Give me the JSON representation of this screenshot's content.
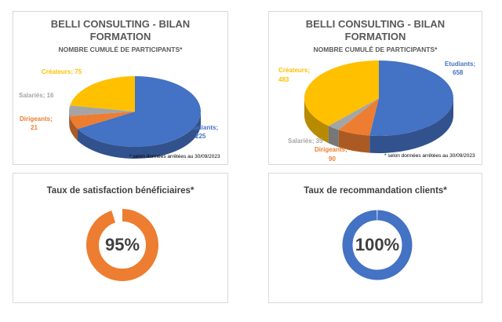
{
  "chart_data": [
    {
      "type": "pie",
      "title": "BELLI CONSULTING - BILAN FORMATION",
      "subtitle": "NOMBRE CUMULÉ DE PARTICIPANTS*",
      "footnote": "* selon données arrêtées au 30/09/2023",
      "slices": [
        {
          "label": "Etudiants",
          "value": 225,
          "color": "#4472c4"
        },
        {
          "label": "Dirigeants",
          "value": 21,
          "color": "#ed7d31"
        },
        {
          "label": "Salariés",
          "value": 16,
          "color": "#a5a5a5"
        },
        {
          "label": "Créateurs",
          "value": 75,
          "color": "#ffc000"
        }
      ],
      "label_texts": [
        "Etudiants;",
        "225",
        "Dirigeants;",
        "21",
        "Salariés; 16",
        "Créateurs; 75"
      ]
    },
    {
      "type": "pie",
      "title": "BELLI CONSULTING - BILAN FORMATION",
      "subtitle": "NOMBRE CUMULÉ DE PARTICIPANTS*",
      "footnote": "* selon données arrêtées au 30/09/2023",
      "slices": [
        {
          "label": "Etudiants",
          "value": 658,
          "color": "#4472c4"
        },
        {
          "label": "Dirigeants",
          "value": 90,
          "color": "#ed7d31"
        },
        {
          "label": "Salariés",
          "value": 35,
          "color": "#a5a5a5"
        },
        {
          "label": "Créateurs",
          "value": 483,
          "color": "#ffc000"
        }
      ],
      "label_texts": [
        "Etudiants;",
        "658",
        "Dirigeants;",
        "90",
        "Salariés; 35",
        "Créateurs;",
        "483"
      ]
    },
    {
      "type": "pie",
      "title": "Taux de satisfaction bénéficiaires*",
      "value": 95,
      "value_text": "95%",
      "color": "#ed7d31"
    },
    {
      "type": "pie",
      "title": "Taux de recommandation clients*",
      "value": 100,
      "value_text": "100%",
      "color": "#4472c4"
    }
  ]
}
